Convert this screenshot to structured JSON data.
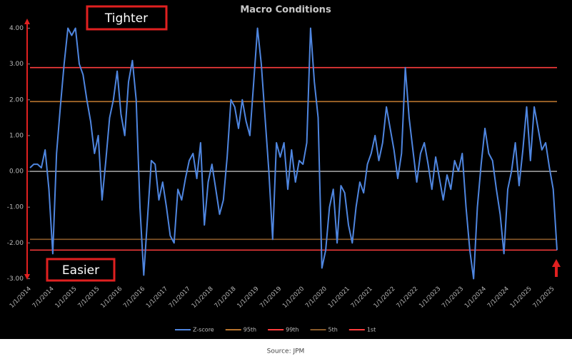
{
  "chart_data": {
    "type": "line",
    "title": "Macro Conditions",
    "annotations": [
      "Tighter",
      "Easier"
    ],
    "source": "Source: JPM",
    "categories": [
      "1/1/2014",
      null,
      null,
      null,
      null,
      null,
      "7/1/2014",
      null,
      null,
      null,
      null,
      null,
      "1/1/2015",
      null,
      null,
      null,
      null,
      null,
      "7/1/2015",
      null,
      null,
      null,
      null,
      null,
      "1/1/2016",
      null,
      null,
      null,
      null,
      null,
      "7/1/2016",
      null,
      null,
      null,
      null,
      null,
      "1/1/2017",
      null,
      null,
      null,
      null,
      null,
      "7/1/2017",
      null,
      null,
      null,
      null,
      null,
      "1/1/2018",
      null,
      null,
      null,
      null,
      null,
      "7/1/2018",
      null,
      null,
      null,
      null,
      null,
      "1/1/2019",
      null,
      null,
      null,
      null,
      null,
      "7/1/2019",
      null,
      null,
      null,
      null,
      null,
      "1/1/2020",
      null,
      null,
      null,
      null,
      null,
      "7/1/2020",
      null,
      null,
      null,
      null,
      null,
      "1/1/2021",
      null,
      null,
      null,
      null,
      null,
      "7/1/2021",
      null,
      null,
      null,
      null,
      null,
      "1/1/2022",
      null,
      null,
      null,
      null,
      null,
      "7/1/2022",
      null,
      null,
      null,
      null,
      null,
      "1/1/2023",
      null,
      null,
      null,
      null,
      null,
      "7/1/2023",
      null,
      null,
      null,
      null,
      null,
      "1/1/2024",
      null,
      null,
      null,
      null,
      null,
      "7/1/2024",
      null,
      null,
      null,
      null,
      null,
      "1/1/2025",
      null,
      null,
      null,
      null,
      null,
      "7/1/2025",
      null
    ],
    "series": [
      {
        "name": "Z-score",
        "color": "#4f86e0",
        "values": [
          0.1,
          0.2,
          0.2,
          0.1,
          0.6,
          -0.5,
          -2.3,
          0.5,
          1.8,
          3.0,
          4.0,
          3.8,
          4.0,
          3.0,
          2.7,
          2.0,
          1.4,
          0.5,
          1.0,
          -0.8,
          0.3,
          1.5,
          2.0,
          2.8,
          1.6,
          1.0,
          2.5,
          3.1,
          2.0,
          -1.0,
          -2.9,
          -1.3,
          0.3,
          0.2,
          -0.8,
          -0.3,
          -1.0,
          -1.8,
          -2.0,
          -0.5,
          -0.8,
          -0.2,
          0.3,
          0.5,
          -0.2,
          0.8,
          -1.5,
          -0.3,
          0.2,
          -0.5,
          -1.2,
          -0.8,
          0.4,
          2.0,
          1.8,
          1.2,
          2.0,
          1.4,
          1.0,
          2.5,
          4.0,
          3.0,
          1.5,
          0.0,
          -1.9,
          0.8,
          0.4,
          0.8,
          -0.5,
          0.6,
          -0.3,
          0.3,
          0.2,
          0.8,
          4.0,
          2.5,
          1.5,
          -2.7,
          -2.2,
          -1.0,
          -0.5,
          -2.0,
          -0.4,
          -0.6,
          -1.5,
          -2.0,
          -1.0,
          -0.3,
          -0.6,
          0.2,
          0.5,
          1.0,
          0.3,
          0.8,
          1.8,
          1.2,
          0.6,
          -0.2,
          0.5,
          2.9,
          1.5,
          0.6,
          -0.3,
          0.5,
          0.8,
          0.2,
          -0.5,
          0.4,
          -0.2,
          -0.8,
          -0.1,
          -0.5,
          0.3,
          0.0,
          0.5,
          -1.0,
          -2.2,
          -3.0,
          -1.0,
          0.2,
          1.2,
          0.5,
          0.3,
          -0.5,
          -1.2,
          -2.3,
          -0.5,
          0.0,
          0.8,
          -0.4,
          0.6,
          1.8,
          0.3,
          1.8,
          1.2,
          0.6,
          0.8,
          0.1,
          -0.5,
          -2.2
        ]
      }
    ],
    "thresholds": [
      {
        "name": "95th",
        "color": "#b9742e",
        "value": 1.95
      },
      {
        "name": "99th",
        "color": "#ff3d3d",
        "value": 2.9
      },
      {
        "name": "5th",
        "color": "#8a5a2a",
        "value": -1.9
      },
      {
        "name": "1st",
        "color": "#ff3d3d",
        "value": -2.2
      }
    ],
    "ylim": [
      -3.05,
      4.25
    ],
    "yticks": [
      {
        "value": -3,
        "label": "-3.00"
      },
      {
        "value": -2,
        "label": "-2.00"
      },
      {
        "value": -1,
        "label": "-1.00"
      },
      {
        "value": 0,
        "label": "0.00"
      },
      {
        "value": 1,
        "label": "1.00"
      },
      {
        "value": 2,
        "label": "2.00"
      },
      {
        "value": 3,
        "label": "3.00"
      },
      {
        "value": 4,
        "label": "4.00"
      }
    ]
  }
}
